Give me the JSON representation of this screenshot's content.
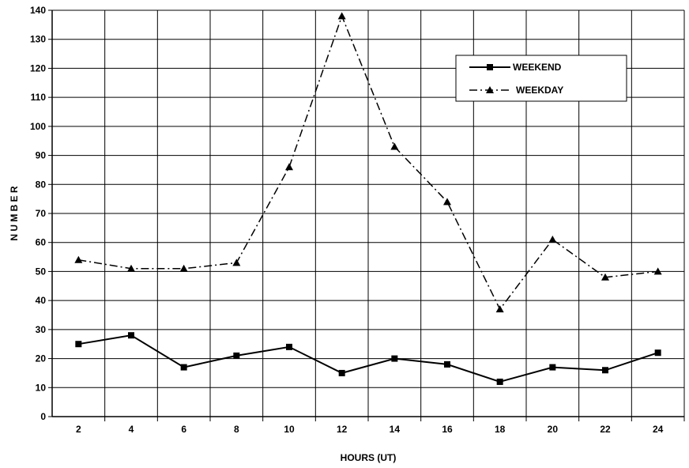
{
  "chart_data": {
    "type": "line",
    "title": "",
    "xlabel": "HOURS (UT)",
    "ylabel": "N U M B E R",
    "x": [
      2,
      4,
      6,
      8,
      10,
      12,
      14,
      16,
      18,
      20,
      22,
      24
    ],
    "xticks": [
      "2",
      "4",
      "6",
      "8",
      "10",
      "12",
      "14",
      "16",
      "18",
      "20",
      "22",
      "24"
    ],
    "ylim": [
      0,
      140
    ],
    "yticks": [
      "0",
      "10",
      "20",
      "30",
      "40",
      "50",
      "60",
      "70",
      "80",
      "90",
      "100",
      "110",
      "120",
      "130",
      "140"
    ],
    "grid": true,
    "legend_position": "top-right",
    "series": [
      {
        "name": "WEEKEND",
        "marker": "square",
        "line_style": "solid",
        "color": "#000000",
        "values": [
          25,
          28,
          17,
          21,
          24,
          15,
          20,
          18,
          12,
          17,
          16,
          22
        ]
      },
      {
        "name": "WEEKDAY",
        "marker": "triangle",
        "line_style": "dash-dot",
        "color": "#000000",
        "values": [
          54,
          51,
          51,
          53,
          86,
          138,
          93,
          74,
          37,
          61,
          48,
          50
        ]
      }
    ]
  }
}
